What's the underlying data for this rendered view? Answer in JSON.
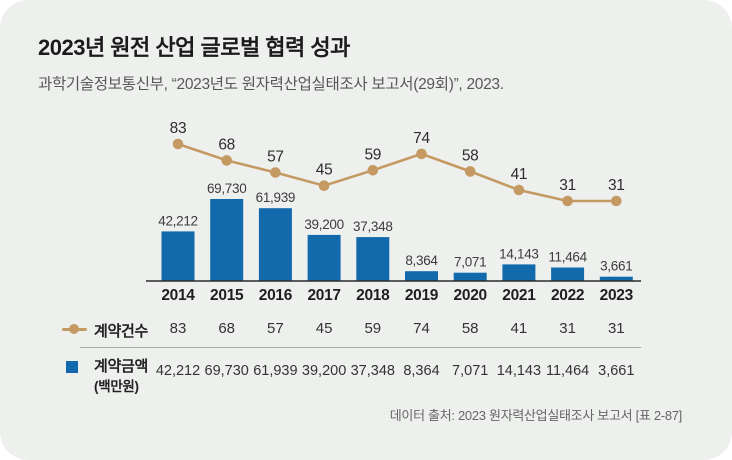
{
  "card": {
    "title": "2023년 원전 산업 글로벌 협력 성과",
    "subtitle": "과학기술정보통신부, “2023년도 원자력산업실태조사 보고서(29회)”, 2023.",
    "footer": "데이터 출처: 2023 원자력산업실태조사 보고서 [표 2-87]"
  },
  "colors": {
    "bar": "#1269ac",
    "line": "#c49a62",
    "axis": "#2a2a2a",
    "card_bg": "#eef0ee"
  },
  "chart_data": {
    "type": "combo-bar-line",
    "title": "2023년 원전 산업 글로벌 협력 성과",
    "categories": [
      "2014",
      "2015",
      "2016",
      "2017",
      "2018",
      "2019",
      "2020",
      "2021",
      "2022",
      "2023"
    ],
    "series": [
      {
        "name": "계약건수",
        "type": "line",
        "color": "#c49a62",
        "values": [
          83,
          68,
          57,
          45,
          59,
          74,
          58,
          41,
          31,
          31
        ],
        "labels": [
          "83",
          "68",
          "57",
          "45",
          "59",
          "74",
          "58",
          "41",
          "31",
          "31"
        ]
      },
      {
        "name": "계약금액(백만원)",
        "type": "bar",
        "color": "#1269ac",
        "values": [
          42212,
          69730,
          61939,
          39200,
          37348,
          8364,
          7071,
          14143,
          11464,
          3661
        ],
        "labels": [
          "42,212",
          "69,730",
          "61,939",
          "39,200",
          "37,348",
          "8,364",
          "7,071",
          "14,143",
          "11,464",
          "3,661"
        ]
      }
    ],
    "xlabel": "",
    "ylabel": "",
    "bar_ylim": [
      0,
      75000
    ],
    "line_ylim": [
      0,
      90
    ],
    "grid": false,
    "legend_position": "bottom-table",
    "data_labels": true
  },
  "legend_table": {
    "rows": [
      {
        "marker": "line-dot",
        "label": "계약건수",
        "unit": "",
        "values": [
          "83",
          "68",
          "57",
          "45",
          "59",
          "74",
          "58",
          "41",
          "31",
          "31"
        ]
      },
      {
        "marker": "square",
        "label": "계약금액",
        "unit": "(백만원)",
        "values": [
          "42,212",
          "69,730",
          "61,939",
          "39,200",
          "37,348",
          "8,364",
          "7,071",
          "14,143",
          "11,464",
          "3,661"
        ]
      }
    ]
  }
}
